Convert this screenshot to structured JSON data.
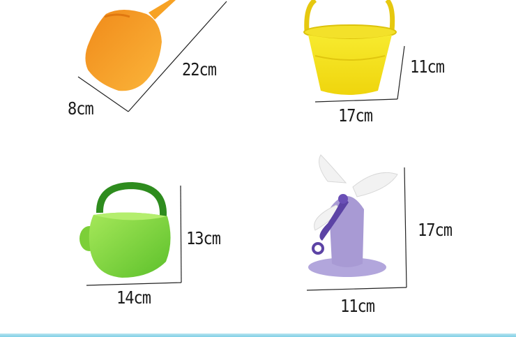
{
  "products": [
    {
      "name": "scoop",
      "dimensions": [
        "22cm",
        "8cm"
      ],
      "color": "#f7a224"
    },
    {
      "name": "bucket",
      "dimensions": [
        "11cm",
        "17cm"
      ],
      "color": "#f2e01f"
    },
    {
      "name": "watering-can",
      "dimensions": [
        "13cm",
        "14cm"
      ],
      "color": "#86d63a"
    },
    {
      "name": "windmill",
      "dimensions": [
        "17cm",
        "11cm"
      ],
      "color": "#a89ad4"
    }
  ]
}
